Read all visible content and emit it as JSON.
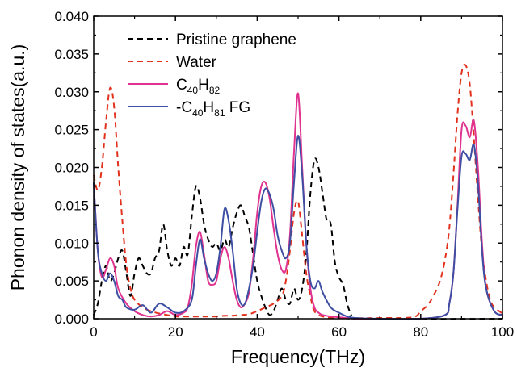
{
  "chart_data": {
    "type": "line",
    "xlabel": "Frequency(THz)",
    "ylabel": "Phonon density of states(a.u.)",
    "xlim": [
      0,
      100
    ],
    "ylim": [
      0,
      0.04
    ],
    "x_ticks": [
      "0",
      "20",
      "40",
      "60",
      "80",
      "100"
    ],
    "y_ticks": [
      "0.000",
      "0.005",
      "0.010",
      "0.015",
      "0.020",
      "0.025",
      "0.030",
      "0.035",
      "0.040"
    ],
    "grid": false,
    "legend_position": "top-center",
    "series": [
      {
        "name": "Pristine graphene",
        "legend_main": "Pristine graphene",
        "color": "#000000",
        "dash": "dashed",
        "x": [
          0,
          1,
          2,
          3,
          4,
          5,
          6,
          7,
          8,
          9,
          10,
          11,
          12,
          13,
          14,
          15,
          16,
          17,
          18,
          19,
          20,
          21,
          22,
          23,
          24,
          25,
          26,
          27,
          28,
          29,
          30,
          31,
          32,
          33,
          34,
          35,
          36,
          37,
          38,
          39,
          40,
          41,
          42,
          43,
          44,
          45,
          46,
          47,
          48,
          49,
          50,
          51,
          52,
          53,
          54,
          55,
          56,
          57,
          58,
          59,
          60,
          61,
          62,
          63,
          64,
          100
        ],
        "y": [
          0.0005,
          0.002,
          0.005,
          0.007,
          0.005,
          0.006,
          0.008,
          0.009,
          0.006,
          0.003,
          0.006,
          0.008,
          0.007,
          0.006,
          0.006,
          0.008,
          0.009,
          0.0125,
          0.009,
          0.007,
          0.008,
          0.007,
          0.0095,
          0.0085,
          0.0135,
          0.0175,
          0.016,
          0.0125,
          0.0105,
          0.0095,
          0.01,
          0.009,
          0.0105,
          0.0095,
          0.012,
          0.014,
          0.015,
          0.0135,
          0.012,
          0.0085,
          0.005,
          0.003,
          0.0015,
          0.0005,
          0.001,
          0.0025,
          0.004,
          0.0025,
          0.002,
          0.004,
          0.0025,
          0.004,
          0.0085,
          0.0165,
          0.021,
          0.02,
          0.0165,
          0.013,
          0.0125,
          0.0075,
          0.0055,
          0.0045,
          0.002,
          0.0005,
          0.0,
          0.0
        ]
      },
      {
        "name": "Water",
        "legend_main": "Water",
        "color": "#e2311d",
        "dash": "dashed",
        "x": [
          0,
          1,
          2,
          3,
          4,
          5,
          6,
          7,
          8,
          9,
          10,
          12,
          14,
          16,
          18,
          20,
          22,
          24,
          26,
          28,
          30,
          32,
          34,
          36,
          38,
          40,
          42,
          44,
          46,
          47,
          48,
          49,
          50,
          51,
          52,
          53,
          54,
          56,
          60,
          70,
          78,
          80,
          82,
          84,
          85,
          86,
          87,
          88,
          89,
          90,
          91,
          92,
          93,
          94,
          95,
          96,
          97,
          98,
          100
        ],
        "y": [
          0.019,
          0.017,
          0.02,
          0.026,
          0.0305,
          0.028,
          0.02,
          0.013,
          0.007,
          0.004,
          0.0025,
          0.0015,
          0.001,
          0.0007,
          0.0005,
          0.0003,
          0.0003,
          0.0003,
          0.0003,
          0.0003,
          0.0003,
          0.0004,
          0.0004,
          0.0005,
          0.0006,
          0.001,
          0.0015,
          0.002,
          0.003,
          0.005,
          0.009,
          0.014,
          0.0155,
          0.011,
          0.006,
          0.003,
          0.001,
          0.0003,
          0.0001,
          0.0001,
          0.0002,
          0.001,
          0.002,
          0.004,
          0.0055,
          0.008,
          0.012,
          0.019,
          0.027,
          0.0325,
          0.0335,
          0.031,
          0.024,
          0.016,
          0.009,
          0.005,
          0.0025,
          0.0015,
          0.0007
        ]
      },
      {
        "name": "C40H82",
        "legend_main": "C",
        "legend_sub1": "40",
        "legend_mid": "H",
        "legend_sub2": "82",
        "legend_suffix": "",
        "color": "#e0338f",
        "dash": "solid",
        "x": [
          0,
          1,
          2,
          3,
          4,
          5,
          6,
          8,
          10,
          12,
          14,
          16,
          18,
          20,
          22,
          23,
          24,
          25,
          26,
          27,
          28,
          29,
          30,
          31,
          32,
          33,
          34,
          35,
          36,
          37,
          38,
          39,
          40,
          41,
          42,
          43,
          44,
          45,
          46,
          47,
          48,
          49,
          50,
          51,
          52,
          53,
          54,
          55,
          56,
          58,
          60,
          62,
          64,
          70,
          80,
          86,
          87,
          88,
          89,
          90,
          91,
          92,
          93,
          94,
          95,
          96,
          98,
          100
        ],
        "y": [
          0.018,
          0.009,
          0.0055,
          0.0065,
          0.008,
          0.007,
          0.004,
          0.002,
          0.001,
          0.0005,
          0.0003,
          0.0005,
          0.001,
          0.0005,
          0.0008,
          0.0015,
          0.0045,
          0.0095,
          0.0115,
          0.0085,
          0.005,
          0.0045,
          0.005,
          0.008,
          0.0095,
          0.008,
          0.005,
          0.0025,
          0.0015,
          0.002,
          0.0035,
          0.008,
          0.014,
          0.0175,
          0.018,
          0.016,
          0.012,
          0.0085,
          0.0065,
          0.0065,
          0.011,
          0.022,
          0.0298,
          0.02,
          0.01,
          0.004,
          0.0015,
          0.0008,
          0.0005,
          0.0003,
          0.0002,
          0.0001,
          0.0,
          0.0,
          0.0,
          0.0005,
          0.002,
          0.006,
          0.015,
          0.025,
          0.0255,
          0.024,
          0.0262,
          0.02,
          0.01,
          0.004,
          0.001,
          0.0005
        ]
      },
      {
        "name": "-C40H81 FG",
        "legend_main": "-C",
        "legend_sub1": "40",
        "legend_mid": "H",
        "legend_sub2": "81",
        "legend_suffix": " FG",
        "color": "#3d4ea3",
        "dash": "solid",
        "x": [
          0,
          1,
          2,
          3,
          4,
          5,
          6,
          7,
          8,
          10,
          12,
          14,
          16,
          18,
          20,
          22,
          24,
          25,
          26,
          27,
          28,
          29,
          30,
          31,
          32,
          33,
          34,
          35,
          36,
          37,
          38,
          39,
          40,
          41,
          42,
          43,
          44,
          45,
          46,
          47,
          48,
          49,
          50,
          51,
          52,
          53,
          54,
          55,
          56,
          58,
          60,
          62,
          64,
          70,
          80,
          86,
          87,
          88,
          89,
          90,
          91,
          92,
          93,
          94,
          95,
          96,
          98,
          100
        ],
        "y": [
          0.018,
          0.009,
          0.006,
          0.005,
          0.006,
          0.005,
          0.003,
          0.0025,
          0.0015,
          0.0012,
          0.0018,
          0.0008,
          0.002,
          0.0015,
          0.0008,
          0.001,
          0.0025,
          0.007,
          0.0105,
          0.008,
          0.006,
          0.005,
          0.006,
          0.0095,
          0.0145,
          0.013,
          0.009,
          0.004,
          0.002,
          0.002,
          0.004,
          0.007,
          0.0115,
          0.0155,
          0.0172,
          0.0165,
          0.0145,
          0.011,
          0.009,
          0.008,
          0.01,
          0.018,
          0.0242,
          0.019,
          0.01,
          0.005,
          0.004,
          0.005,
          0.0035,
          0.0015,
          0.0008,
          0.0003,
          0.0001,
          0.0,
          0.0,
          0.0005,
          0.002,
          0.006,
          0.0145,
          0.0215,
          0.0218,
          0.021,
          0.023,
          0.018,
          0.009,
          0.004,
          0.001,
          0.0005
        ]
      }
    ]
  }
}
